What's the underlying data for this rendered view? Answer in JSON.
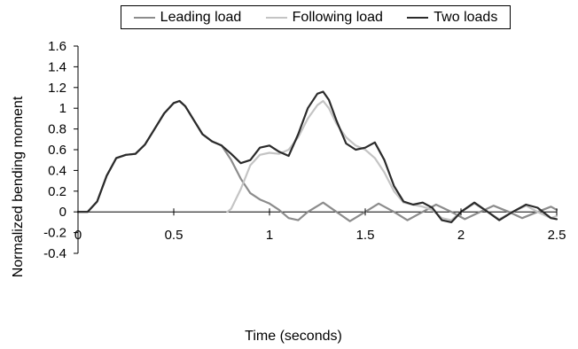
{
  "chart_data": {
    "type": "line",
    "title": "",
    "xlabel": "Time (seconds)",
    "ylabel": "Normalized bending moment",
    "xlim": [
      0,
      2.5
    ],
    "ylim": [
      -0.4,
      1.6
    ],
    "xticks": [
      0,
      0.5,
      1,
      1.5,
      2,
      2.5
    ],
    "xtick_labels": [
      "0",
      "0.5",
      "1",
      "1.5",
      "2",
      "2.5"
    ],
    "yticks": [
      -0.4,
      -0.2,
      0,
      0.2,
      0.4,
      0.6,
      0.8,
      1,
      1.2,
      1.4,
      1.6
    ],
    "ytick_labels": [
      "-0.4",
      "-0.2",
      "0",
      "0.2",
      "0.4",
      "0.6",
      "0.8",
      "1",
      "1.2",
      "1.4",
      "1.6"
    ],
    "grid": false,
    "legend_position": "top",
    "series": [
      {
        "name": "Leading load",
        "color": "#8c8c8c",
        "x": [
          0,
          0.05,
          0.1,
          0.15,
          0.2,
          0.25,
          0.3,
          0.35,
          0.4,
          0.45,
          0.5,
          0.53,
          0.56,
          0.6,
          0.65,
          0.7,
          0.75,
          0.8,
          0.85,
          0.9,
          0.95,
          1.0,
          1.05,
          1.1,
          1.15,
          1.2,
          1.28,
          1.35,
          1.42,
          1.5,
          1.57,
          1.65,
          1.72,
          1.8,
          1.87,
          1.95,
          2.02,
          2.1,
          2.17,
          2.25,
          2.32,
          2.4,
          2.47,
          2.5
        ],
        "y": [
          0,
          0,
          0.1,
          0.35,
          0.52,
          0.55,
          0.56,
          0.65,
          0.8,
          0.95,
          1.05,
          1.07,
          1.02,
          0.9,
          0.75,
          0.68,
          0.64,
          0.5,
          0.32,
          0.18,
          0.12,
          0.08,
          0.02,
          -0.06,
          -0.08,
          0.0,
          0.09,
          0.0,
          -0.09,
          0.0,
          0.08,
          0.0,
          -0.08,
          0.0,
          0.07,
          0.0,
          -0.07,
          0.0,
          0.06,
          0.0,
          -0.06,
          0.0,
          0.05,
          0.02
        ]
      },
      {
        "name": "Following load",
        "color": "#c4c4c4",
        "x": [
          0.78,
          0.8,
          0.85,
          0.9,
          0.95,
          1.0,
          1.05,
          1.1,
          1.15,
          1.2,
          1.25,
          1.28,
          1.31,
          1.35,
          1.4,
          1.45,
          1.5,
          1.55,
          1.6,
          1.65,
          1.7,
          1.75,
          1.8,
          1.85,
          1.9,
          1.95,
          2.0,
          2.07,
          2.14,
          2.2,
          2.27,
          2.34,
          2.4,
          2.47,
          2.5
        ],
        "y": [
          0,
          0.03,
          0.22,
          0.45,
          0.55,
          0.57,
          0.56,
          0.6,
          0.72,
          0.9,
          1.03,
          1.07,
          1.0,
          0.85,
          0.72,
          0.64,
          0.6,
          0.52,
          0.38,
          0.2,
          0.09,
          0.07,
          0.05,
          0.02,
          -0.06,
          -0.08,
          0.0,
          0.08,
          0.0,
          -0.07,
          0.0,
          0.06,
          0.0,
          -0.06,
          -0.04
        ]
      },
      {
        "name": "Two loads",
        "color": "#2b2b2b",
        "x": [
          0,
          0.05,
          0.1,
          0.15,
          0.2,
          0.25,
          0.3,
          0.35,
          0.4,
          0.45,
          0.5,
          0.53,
          0.56,
          0.6,
          0.65,
          0.7,
          0.75,
          0.8,
          0.85,
          0.9,
          0.95,
          1.0,
          1.05,
          1.1,
          1.15,
          1.2,
          1.25,
          1.28,
          1.31,
          1.35,
          1.4,
          1.45,
          1.5,
          1.55,
          1.6,
          1.65,
          1.7,
          1.75,
          1.8,
          1.85,
          1.9,
          1.95,
          2.0,
          2.07,
          2.14,
          2.2,
          2.27,
          2.34,
          2.4,
          2.47,
          2.5
        ],
        "y": [
          0,
          0,
          0.1,
          0.35,
          0.52,
          0.55,
          0.56,
          0.65,
          0.8,
          0.95,
          1.05,
          1.07,
          1.02,
          0.9,
          0.75,
          0.68,
          0.64,
          0.56,
          0.47,
          0.5,
          0.62,
          0.64,
          0.58,
          0.54,
          0.75,
          1.0,
          1.14,
          1.16,
          1.08,
          0.88,
          0.66,
          0.6,
          0.62,
          0.67,
          0.5,
          0.25,
          0.1,
          0.07,
          0.09,
          0.04,
          -0.08,
          -0.1,
          0.0,
          0.09,
          0.0,
          -0.08,
          0.0,
          0.07,
          0.04,
          -0.06,
          -0.07
        ]
      }
    ]
  }
}
